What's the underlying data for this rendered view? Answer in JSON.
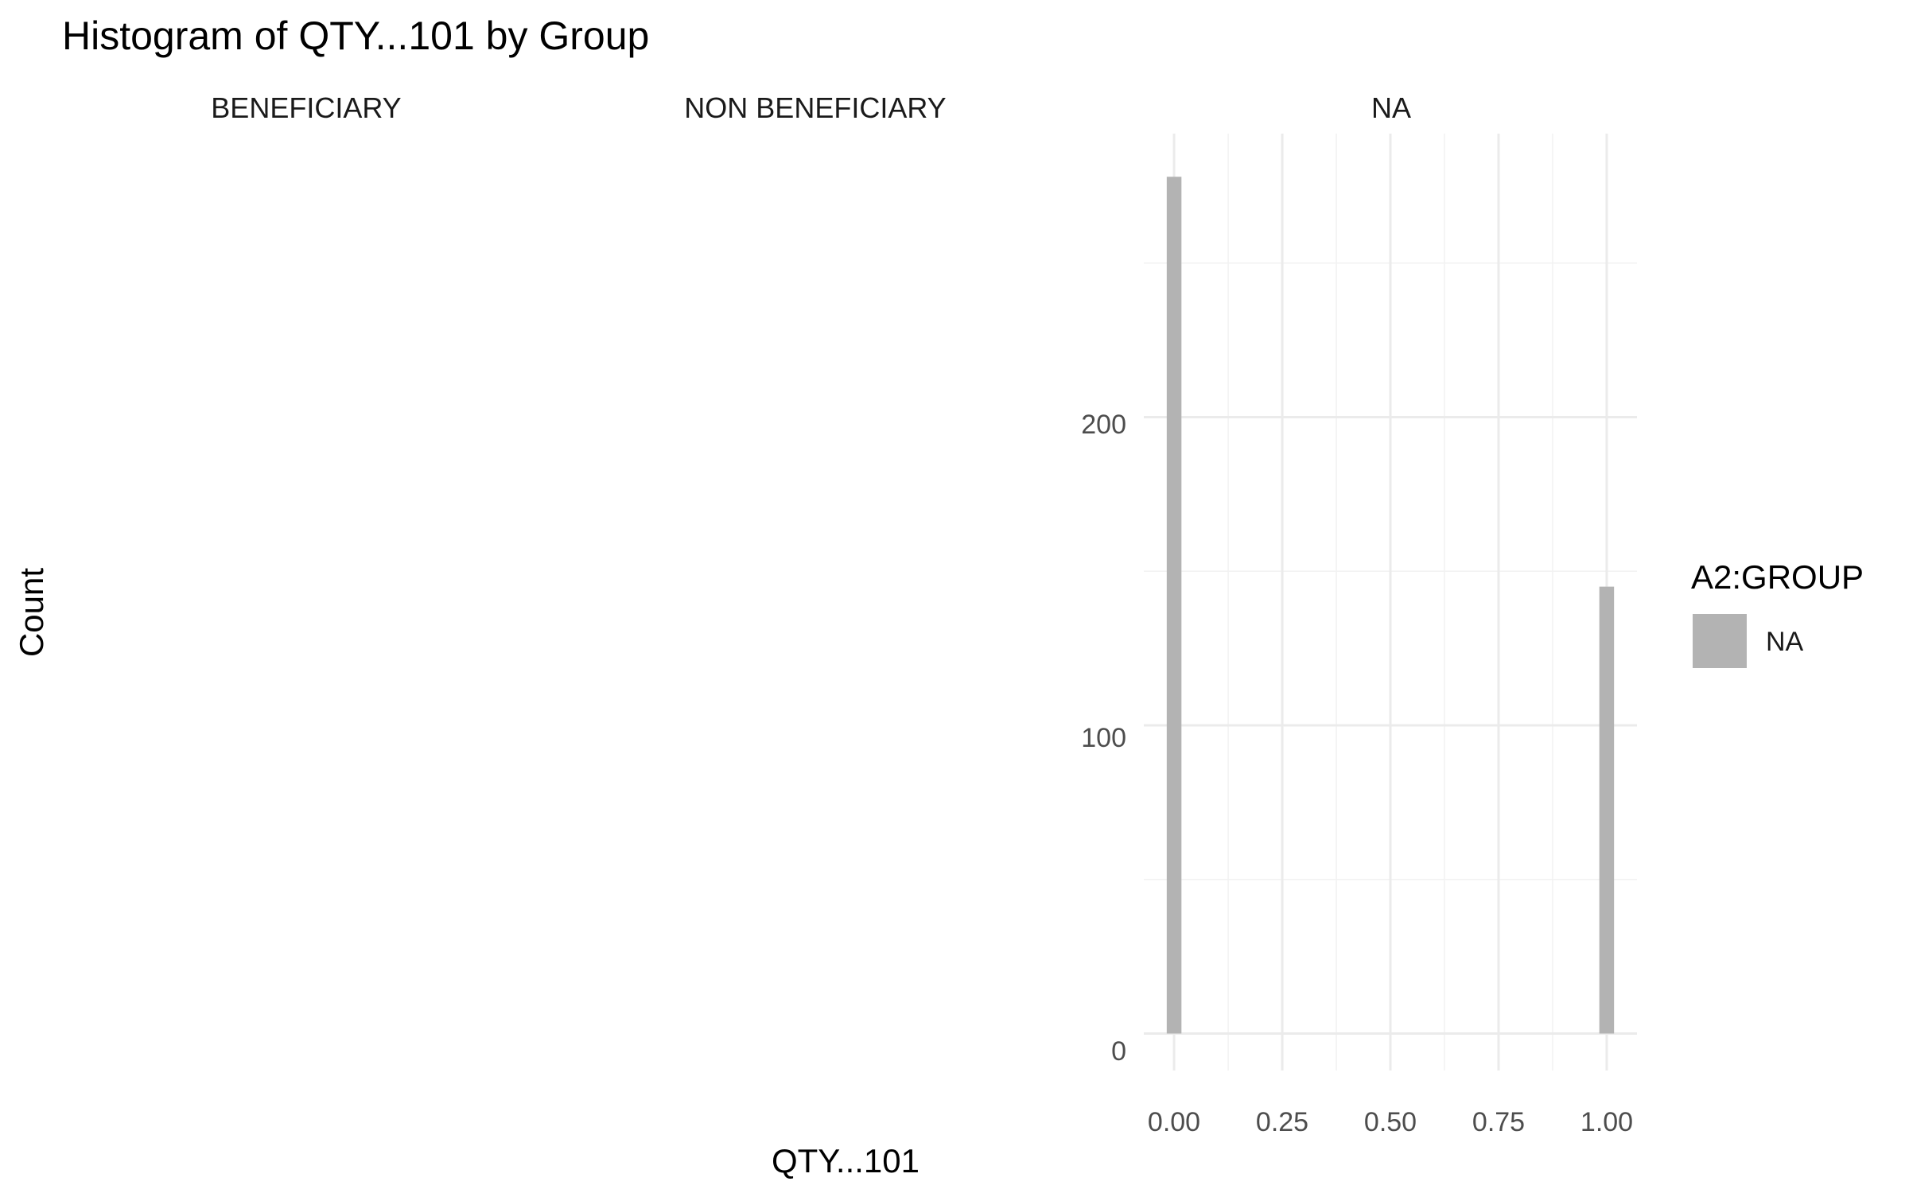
{
  "chart_data": {
    "type": "bar",
    "title": "Histogram of QTY...101 by Group",
    "xlabel": "QTY...101",
    "ylabel": "Count",
    "facets": [
      "BENEFICIARY",
      "NON BENEFICIARY",
      "NA"
    ],
    "x_ticks": [
      "0.00",
      "0.25",
      "0.50",
      "0.75",
      "1.00"
    ],
    "y_ticks": [
      "0",
      "100",
      "200"
    ],
    "xlim": [
      -0.07,
      1.07
    ],
    "ylim": [
      -12,
      292
    ],
    "grid": true,
    "legend": {
      "title": "A2:GROUP",
      "position": "right",
      "entries": [
        {
          "label": "NA",
          "color": "#b3b3b3"
        }
      ]
    },
    "series": [
      {
        "name": "NA",
        "facet": "NA",
        "color": "#b3b3b3",
        "bins": [
          {
            "x": 0.0,
            "count": 278
          },
          {
            "x": 1.0,
            "count": 145
          }
        ]
      }
    ]
  }
}
